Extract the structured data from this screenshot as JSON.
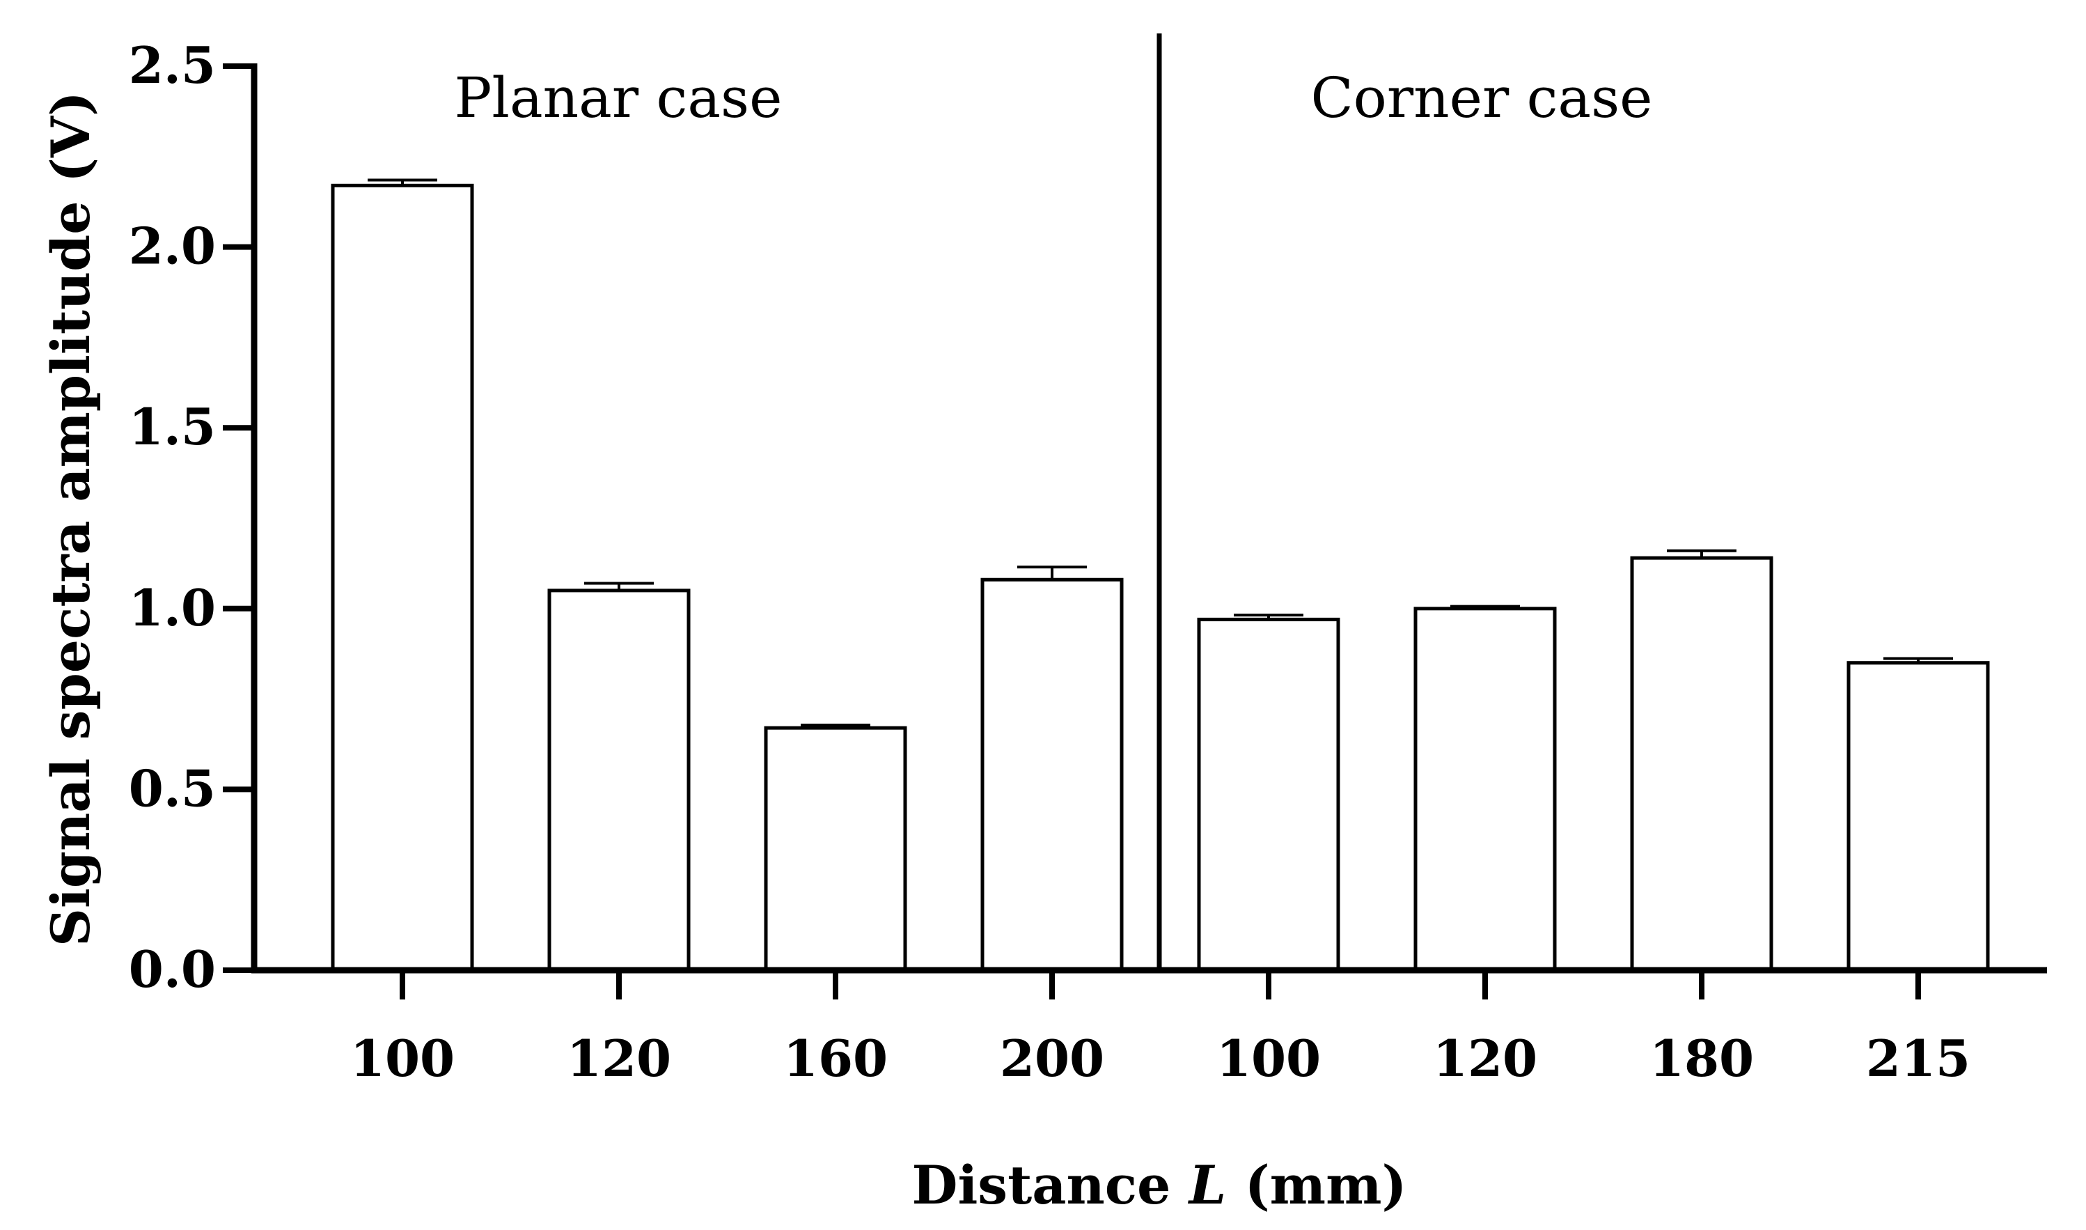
{
  "chart_data": {
    "type": "bar",
    "xlabel": "Distance L (mm)",
    "xlabel_parts": {
      "pre": "Distance ",
      "var": "L",
      "post": " (mm)"
    },
    "ylabel": "Signal spectra amplitude (V)",
    "ylim": [
      0,
      2.5
    ],
    "yticks": [
      "0.0",
      "0.5",
      "1.0",
      "1.5",
      "2.0",
      "2.5"
    ],
    "ytick_values": [
      0,
      0.5,
      1.0,
      1.5,
      2.0,
      2.5
    ],
    "grid": false,
    "bar_fill": "#ffffff",
    "bar_stroke": "#000000",
    "groups": [
      {
        "name": "Planar case",
        "categories": [
          "100",
          "120",
          "160",
          "200"
        ]
      },
      {
        "name": "Corner case",
        "categories": [
          "100",
          "120",
          "180",
          "215"
        ]
      }
    ],
    "categories": [
      "100",
      "120",
      "160",
      "200",
      "100",
      "120",
      "180",
      "215"
    ],
    "values": [
      2.17,
      1.05,
      0.67,
      1.08,
      0.97,
      1.0,
      1.14,
      0.85
    ],
    "errors": [
      0.015,
      0.02,
      0.008,
      0.035,
      0.012,
      0.006,
      0.02,
      0.012
    ]
  }
}
